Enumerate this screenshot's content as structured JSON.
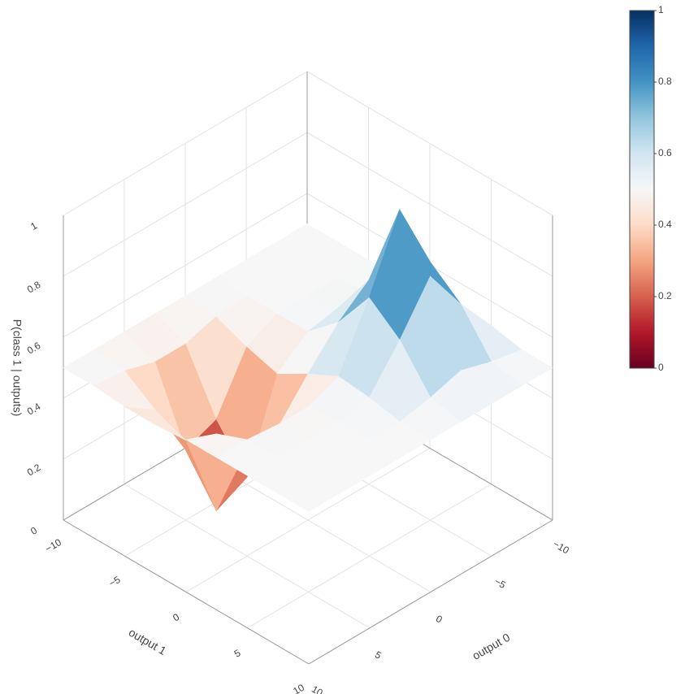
{
  "chart_data": {
    "type": "surface",
    "x": [
      -10,
      -7.5,
      -5,
      -2.5,
      0,
      2.5,
      5,
      7.5,
      10
    ],
    "y": [
      -10,
      -7.5,
      -5,
      -2.5,
      0,
      2.5,
      5,
      7.5,
      10
    ],
    "z": [
      [
        0.5,
        0.5,
        0.5,
        0.5,
        0.5,
        0.5,
        0.5,
        0.5,
        0.5
      ],
      [
        0.5,
        0.5,
        0.5,
        0.5,
        0.49,
        0.46,
        0.46,
        0.49,
        0.5
      ],
      [
        0.5,
        0.5,
        0.5,
        0.5,
        0.45,
        0.27,
        0.23,
        0.42,
        0.49
      ],
      [
        0.5,
        0.51,
        0.52,
        0.5,
        0.42,
        0.14,
        0.09,
        0.38,
        0.49
      ],
      [
        0.51,
        0.59,
        0.67,
        0.59,
        0.48,
        0.36,
        0.35,
        0.46,
        0.5
      ],
      [
        0.53,
        0.73,
        0.96,
        0.73,
        0.53,
        0.49,
        0.49,
        0.5,
        0.5
      ],
      [
        0.52,
        0.65,
        0.8,
        0.65,
        0.52,
        0.5,
        0.5,
        0.5,
        0.5
      ],
      [
        0.5,
        0.52,
        0.55,
        0.52,
        0.5,
        0.5,
        0.5,
        0.5,
        0.5
      ],
      [
        0.5,
        0.5,
        0.5,
        0.5,
        0.5,
        0.5,
        0.5,
        0.5,
        0.5
      ]
    ],
    "xlabel": "output 0",
    "ylabel": "output 1",
    "zlabel": "P(class 1 | outputs)",
    "xlim": [
      -10,
      10
    ],
    "ylim": [
      -10,
      10
    ],
    "zlim": [
      0,
      1
    ],
    "xticks": [
      {
        "value": -10,
        "label": "−10"
      },
      {
        "value": -5,
        "label": "−5"
      },
      0,
      5,
      10
    ],
    "yticks": [
      {
        "value": -10,
        "label": "−10"
      },
      {
        "value": -5,
        "label": "−5"
      },
      0,
      5,
      10
    ],
    "zticks": [
      0,
      0.2,
      0.4,
      0.6,
      0.8,
      1
    ],
    "colorscale": [
      [
        0,
        "#67001f"
      ],
      [
        0.1,
        "#b2182b"
      ],
      [
        0.2,
        "#d6604d"
      ],
      [
        0.3,
        "#f4a582"
      ],
      [
        0.4,
        "#fddbc7"
      ],
      [
        0.5,
        "#f7f7f7"
      ],
      [
        0.6,
        "#d1e5f0"
      ],
      [
        0.7,
        "#92c5de"
      ],
      [
        0.8,
        "#4393c3"
      ],
      [
        0.9,
        "#2166ac"
      ],
      [
        1,
        "#053061"
      ]
    ],
    "clim": [
      0,
      1
    ],
    "cticks": [
      0,
      0.2,
      0.4,
      0.6,
      0.8,
      1
    ]
  }
}
